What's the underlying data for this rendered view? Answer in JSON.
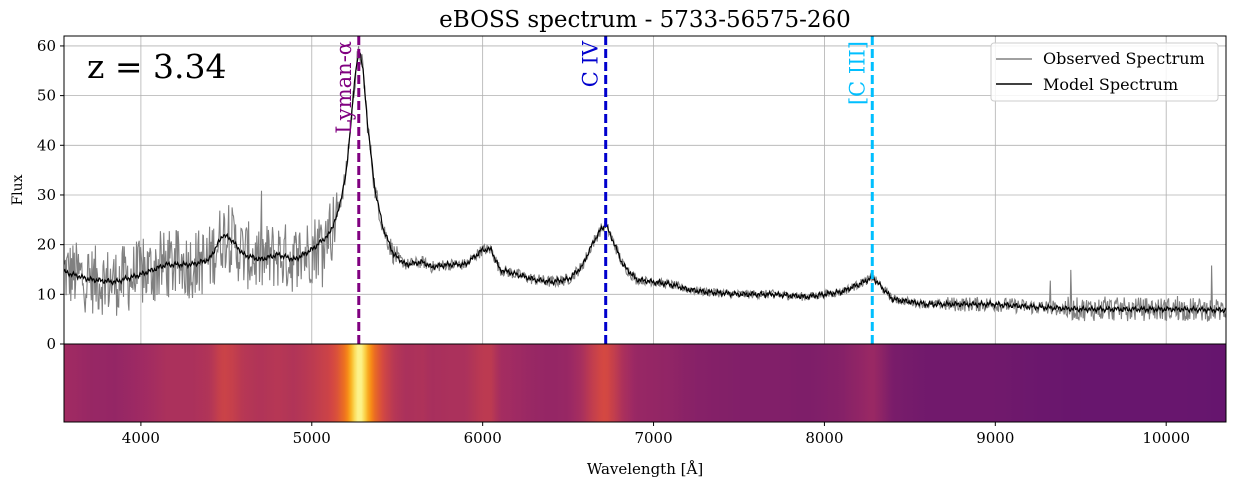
{
  "chart_data": {
    "type": "line",
    "title": "eBOSS spectrum - 5733-56575-260",
    "xlabel": "Wavelength [Å]",
    "ylabel": "Flux",
    "xlim": [
      3550,
      10350
    ],
    "ylim": [
      0,
      62
    ],
    "grid": true,
    "xticks": [
      4000,
      5000,
      6000,
      7000,
      8000,
      9000,
      10000
    ],
    "yticks": [
      0,
      10,
      20,
      30,
      40,
      50,
      60
    ],
    "redshift_label": "z = 3.34",
    "legend": {
      "placement": "top-right",
      "entries": [
        {
          "label": "Observed Spectrum",
          "color": "#808080"
        },
        {
          "label": "Model Spectrum",
          "color": "#000000"
        }
      ]
    },
    "emission_lines": [
      {
        "label": "Lyman-α",
        "wavelength": 5275,
        "color": "#800080"
      },
      {
        "label": "C IV",
        "wavelength": 6720,
        "color": "#0000cd"
      },
      {
        "label": "[C III]",
        "wavelength": 8280,
        "color": "#00bfff"
      }
    ],
    "series": [
      {
        "name": "Model Spectrum",
        "color": "#000000",
        "x": [
          3550,
          3700,
          3850,
          4000,
          4150,
          4300,
          4400,
          4480,
          4530,
          4600,
          4700,
          4800,
          4900,
          5000,
          5100,
          5150,
          5200,
          5230,
          5260,
          5280,
          5300,
          5330,
          5370,
          5420,
          5480,
          5550,
          5650,
          5700,
          5800,
          5900,
          6000,
          6050,
          6100,
          6200,
          6300,
          6400,
          6500,
          6580,
          6640,
          6690,
          6720,
          6760,
          6820,
          6900,
          7000,
          7100,
          7200,
          7300,
          7500,
          7700,
          7900,
          8000,
          8100,
          8200,
          8260,
          8280,
          8320,
          8400,
          8600,
          8800,
          9000,
          9200,
          9500,
          9800,
          10100,
          10350
        ],
        "y": [
          14.5,
          13,
          12.5,
          14,
          16,
          16,
          17,
          22,
          21,
          18,
          17,
          18,
          17,
          19,
          22,
          26,
          34,
          45,
          56,
          59,
          55,
          43,
          31,
          23,
          18,
          16,
          16.5,
          15.5,
          16,
          16,
          19,
          19,
          15,
          14,
          13,
          12.5,
          13,
          15.5,
          20,
          23,
          24,
          21,
          16,
          13,
          12.5,
          12,
          11,
          10.5,
          10,
          10,
          9.5,
          10,
          10.5,
          12,
          13,
          13.5,
          12,
          9,
          8,
          8,
          8,
          7.5,
          7,
          7,
          7,
          6.8
        ]
      }
    ]
  }
}
